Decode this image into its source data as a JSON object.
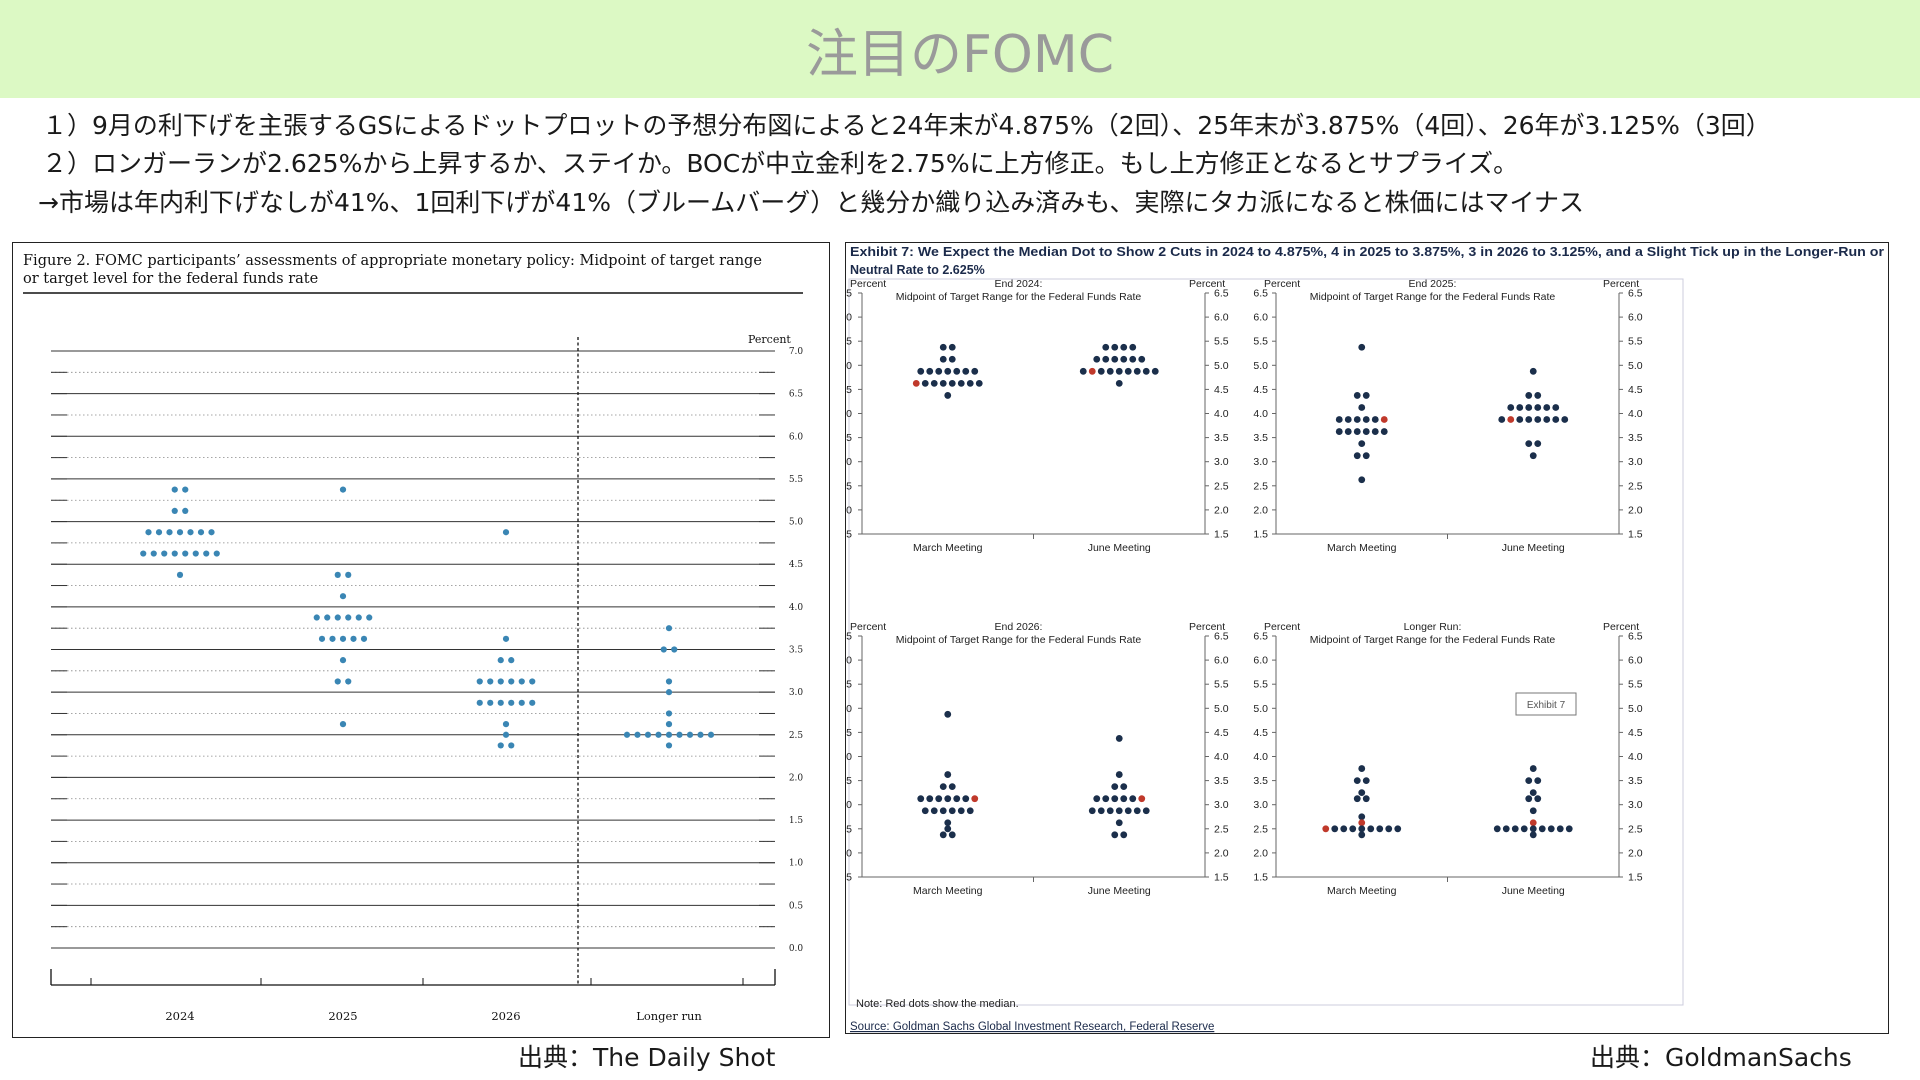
{
  "header": {
    "title": "注目のFOMC"
  },
  "bullets": [
    "１）9月の利下げを主張するGSによるドットプロットの予想分布図によると24年末が4.875%（2回）、25年末が3.875%（4回）、26年が3.125%（3回）",
    "２）ロンガーランが2.625%から上昇するか、ステイか。BOCが中立金利を2.75%に上方修正。もし上方修正となるとサプライズ。",
    "→市場は年内利下げなしが41%、1回利下げが41%（ブルームバーグ）と幾分か織り込み済みも、実際にタカ派になると株価にはマイナス"
  ],
  "sources": {
    "left": "出典：The Daily Shot",
    "right": "出典：GoldmanSachs"
  },
  "colors": {
    "header_bg": "#dcf9c4",
    "fed_dot": "#3a86b4",
    "gs_dot": "#1b2f4b",
    "gs_median": "#c0392b"
  },
  "chart_data": [
    {
      "type": "scatter",
      "title": "Figure 2.  FOMC participants’ assessments of appropriate monetary policy:  Midpoint of target range or target level for the federal funds rate",
      "title_line1": "Figure 2.  FOMC participants’ assessments of appropriate monetary policy:  Midpoint of target range",
      "title_line2": "or target level for the federal funds rate",
      "ylabel": "Percent",
      "ylim": [
        0,
        7
      ],
      "yticks": [
        "0.0",
        "0.5",
        "1.0",
        "1.5",
        "2.0",
        "2.5",
        "3.0",
        "3.5",
        "4.0",
        "4.5",
        "5.0",
        "5.5",
        "6.0",
        "6.5",
        "7.0"
      ],
      "categories": [
        "2024",
        "2025",
        "2026",
        "Longer run"
      ],
      "dots": [
        {
          "x": "2024",
          "y": 5.375,
          "n": 2
        },
        {
          "x": "2024",
          "y": 5.125,
          "n": 2
        },
        {
          "x": "2024",
          "y": 4.875,
          "n": 7
        },
        {
          "x": "2024",
          "y": 4.625,
          "n": 8
        },
        {
          "x": "2024",
          "y": 4.375,
          "n": 1
        },
        {
          "x": "2025",
          "y": 5.375,
          "n": 1
        },
        {
          "x": "2025",
          "y": 4.375,
          "n": 2
        },
        {
          "x": "2025",
          "y": 4.125,
          "n": 1
        },
        {
          "x": "2025",
          "y": 3.875,
          "n": 6
        },
        {
          "x": "2025",
          "y": 3.625,
          "n": 5
        },
        {
          "x": "2025",
          "y": 3.375,
          "n": 1
        },
        {
          "x": "2025",
          "y": 3.125,
          "n": 2
        },
        {
          "x": "2025",
          "y": 2.625,
          "n": 1
        },
        {
          "x": "2026",
          "y": 4.875,
          "n": 1
        },
        {
          "x": "2026",
          "y": 3.625,
          "n": 1
        },
        {
          "x": "2026",
          "y": 3.375,
          "n": 2
        },
        {
          "x": "2026",
          "y": 3.125,
          "n": 6
        },
        {
          "x": "2026",
          "y": 2.875,
          "n": 6
        },
        {
          "x": "2026",
          "y": 2.625,
          "n": 1
        },
        {
          "x": "2026",
          "y": 2.5,
          "n": 1
        },
        {
          "x": "2026",
          "y": 2.375,
          "n": 2
        },
        {
          "x": "Longer run",
          "y": 3.75,
          "n": 1
        },
        {
          "x": "Longer run",
          "y": 3.5,
          "n": 2
        },
        {
          "x": "Longer run",
          "y": 3.125,
          "n": 1
        },
        {
          "x": "Longer run",
          "y": 3.0,
          "n": 1
        },
        {
          "x": "Longer run",
          "y": 2.75,
          "n": 1
        },
        {
          "x": "Longer run",
          "y": 2.625,
          "n": 1
        },
        {
          "x": "Longer run",
          "y": 2.5,
          "n": 9
        },
        {
          "x": "Longer run",
          "y": 2.375,
          "n": 1
        }
      ]
    },
    {
      "type": "scatter",
      "title": "Exhibit 7: We Expect the Median Dot to Show 2 Cuts in 2024 to 4.875%, 4 in 2025 to 3.875%, 3 in 2026 to 3.125%, and a Slight Tick up in the Longer-Run or Neutral Rate to 2.625%",
      "title_line1": "Exhibit 7: We Expect the Median Dot to Show 2 Cuts in 2024 to 4.875%, 4 in 2025 to 3.875%, 3 in 2026 to 3.125%, and a Slight Tick up in the Longer-Run or",
      "title_line2": "Neutral Rate to 2.625%",
      "note": "Note: Red dots show the median.",
      "source": "Source: Goldman Sachs Global Investment Research, Federal Reserve",
      "exhibit_tag": "Exhibit 7",
      "ylabel": "Percent",
      "panel_subtitle": "Midpoint of Target  Range for the Federal Funds Rate",
      "yticks": [
        "1.5",
        "2.0",
        "2.5",
        "3.0",
        "3.5",
        "4.0",
        "4.5",
        "5.0",
        "5.5",
        "6.0",
        "6.5"
      ],
      "categories": [
        "March Meeting",
        "June Meeting"
      ],
      "panels": [
        {
          "label": "End 2024:",
          "ylim": [
            1.5,
            6.5
          ],
          "march": [
            {
              "y": 5.375,
              "n": 2
            },
            {
              "y": 5.125,
              "n": 2
            },
            {
              "y": 4.875,
              "n": 7
            },
            {
              "y": 4.625,
              "n": 8,
              "median_index": 0
            },
            {
              "y": 4.375,
              "n": 1
            }
          ],
          "june": [
            {
              "y": 5.375,
              "n": 4
            },
            {
              "y": 5.125,
              "n": 6
            },
            {
              "y": 4.875,
              "n": 9,
              "median_index": 1
            },
            {
              "y": 4.625,
              "n": 1
            }
          ]
        },
        {
          "label": "End 2025:",
          "ylim": [
            1.5,
            6.5
          ],
          "march": [
            {
              "y": 5.375,
              "n": 1
            },
            {
              "y": 4.375,
              "n": 2
            },
            {
              "y": 4.125,
              "n": 1
            },
            {
              "y": 3.875,
              "n": 6,
              "median_index": 5
            },
            {
              "y": 3.625,
              "n": 6
            },
            {
              "y": 3.375,
              "n": 1
            },
            {
              "y": 3.125,
              "n": 2
            },
            {
              "y": 2.625,
              "n": 1
            }
          ],
          "june": [
            {
              "y": 4.875,
              "n": 1
            },
            {
              "y": 4.375,
              "n": 2
            },
            {
              "y": 4.125,
              "n": 6
            },
            {
              "y": 3.875,
              "n": 8,
              "median_index": 1
            },
            {
              "y": 3.375,
              "n": 2
            },
            {
              "y": 3.125,
              "n": 1
            }
          ]
        },
        {
          "label": "End 2026:",
          "ylim": [
            1.5,
            6.5
          ],
          "march": [
            {
              "y": 4.875,
              "n": 1
            },
            {
              "y": 3.625,
              "n": 1
            },
            {
              "y": 3.375,
              "n": 2
            },
            {
              "y": 3.125,
              "n": 7,
              "median_index": 6
            },
            {
              "y": 2.875,
              "n": 6
            },
            {
              "y": 2.625,
              "n": 1
            },
            {
              "y": 2.5,
              "n": 1
            },
            {
              "y": 2.375,
              "n": 2
            }
          ],
          "june": [
            {
              "y": 4.375,
              "n": 1
            },
            {
              "y": 3.625,
              "n": 1
            },
            {
              "y": 3.375,
              "n": 2
            },
            {
              "y": 3.125,
              "n": 6,
              "median_index": 5
            },
            {
              "y": 2.875,
              "n": 7
            },
            {
              "y": 2.625,
              "n": 1
            },
            {
              "y": 2.375,
              "n": 2
            }
          ]
        },
        {
          "label": "Longer Run:",
          "ylim": [
            1.5,
            6.5
          ],
          "march": [
            {
              "y": 3.75,
              "n": 1
            },
            {
              "y": 3.5,
              "n": 2
            },
            {
              "y": 3.25,
              "n": 1
            },
            {
              "y": 3.125,
              "n": 2
            },
            {
              "y": 2.75,
              "n": 1
            },
            {
              "y": 2.625,
              "n": 1,
              "median_index": 0
            },
            {
              "y": 2.5,
              "n": 9,
              "median_index": 0
            },
            {
              "y": 2.375,
              "n": 1
            }
          ],
          "june": [
            {
              "y": 3.75,
              "n": 1
            },
            {
              "y": 3.5,
              "n": 2
            },
            {
              "y": 3.25,
              "n": 1
            },
            {
              "y": 3.125,
              "n": 2
            },
            {
              "y": 2.875,
              "n": 1
            },
            {
              "y": 2.625,
              "n": 1,
              "median_index": 0
            },
            {
              "y": 2.5,
              "n": 9
            },
            {
              "y": 2.375,
              "n": 1
            }
          ]
        }
      ]
    }
  ]
}
